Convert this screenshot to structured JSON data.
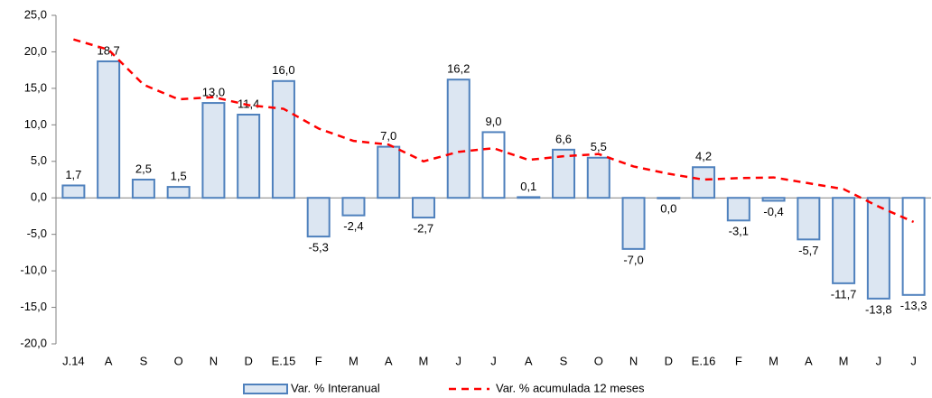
{
  "chart_data": {
    "type": "bar-line",
    "categories": [
      "J.14",
      "A",
      "S",
      "O",
      "N",
      "D",
      "E.15",
      "F",
      "M",
      "A",
      "M",
      "J",
      "J",
      "A",
      "S",
      "O",
      "N",
      "D",
      "E.16",
      "F",
      "M",
      "A",
      "M",
      "J",
      "J"
    ],
    "series": [
      {
        "name": "Var. % Interanual",
        "type": "bar",
        "color": "#4f81bd",
        "fills": [
          "#dce6f2",
          "#dce6f2",
          "#dce6f2",
          "#dce6f2",
          "#dce6f2",
          "#dce6f2",
          "#dce6f2",
          "#dce6f2",
          "#dce6f2",
          "#dce6f2",
          "#dce6f2",
          "#dce6f2",
          "#ffffff",
          "#dce6f2",
          "#dce6f2",
          "#dce6f2",
          "#dce6f2",
          "#dce6f2",
          "#dce6f2",
          "#dce6f2",
          "#dce6f2",
          "#dce6f2",
          "#dce6f2",
          "#dce6f2",
          "#ffffff"
        ],
        "values": [
          1.7,
          18.7,
          2.5,
          1.5,
          13.0,
          11.4,
          16.0,
          -5.3,
          -2.4,
          7.0,
          -2.7,
          16.2,
          9.0,
          0.1,
          6.6,
          5.5,
          -7.0,
          0.0,
          4.2,
          -3.1,
          -0.4,
          -5.7,
          -11.7,
          -13.8,
          -13.3
        ],
        "value_labels": [
          "1,7",
          "18,7",
          "2,5",
          "1,5",
          "13,0",
          "11,4",
          "16,0",
          "-5,3",
          "-2,4",
          "7,0",
          "-2,7",
          "16,2",
          "9,0",
          "0,1",
          "6,6",
          "5,5",
          "-7,0",
          "0,0",
          "4,2",
          "-3,1",
          "-0,4",
          "-5,7",
          "-11,7",
          "-13,8",
          "-13,3"
        ]
      },
      {
        "name": "Var. % acumulada 12 meses",
        "type": "line",
        "color": "#ff0000",
        "dashed": true,
        "values": [
          21.7,
          20.3,
          15.5,
          13.5,
          13.8,
          12.7,
          12.2,
          9.5,
          7.8,
          7.3,
          5.0,
          6.3,
          6.8,
          5.2,
          5.7,
          6.0,
          4.3,
          3.3,
          2.5,
          2.7,
          2.8,
          2.0,
          1.2,
          -1.2,
          -3.3
        ]
      }
    ],
    "ylim": [
      -20,
      25
    ],
    "yticks": [
      {
        "value": -20,
        "label": "-20,0"
      },
      {
        "value": -15,
        "label": "-15,0"
      },
      {
        "value": -10,
        "label": "-10,0"
      },
      {
        "value": -5,
        "label": "-5,0"
      },
      {
        "value": 0,
        "label": "0,0"
      },
      {
        "value": 5,
        "label": "5,0"
      },
      {
        "value": 10,
        "label": "10,0"
      },
      {
        "value": 15,
        "label": "15,0"
      },
      {
        "value": 20,
        "label": "20,0"
      },
      {
        "value": 25,
        "label": "25,0"
      }
    ],
    "legend": "bottom"
  }
}
